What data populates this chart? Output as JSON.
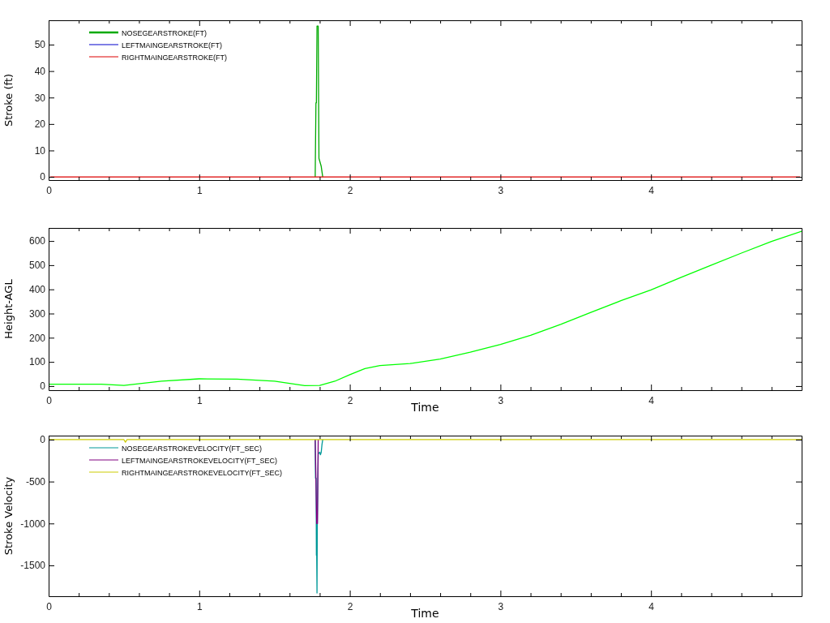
{
  "chart_data": [
    {
      "type": "line",
      "ylabel": "Stroke (ft)",
      "xlim": [
        0,
        5
      ],
      "ylim": [
        -1.2,
        59.2
      ],
      "xticks": [
        0,
        {
          "value": 0.2,
          "label": null
        },
        {
          "value": 0.4,
          "label": null
        },
        {
          "value": 0.6,
          "label": null
        },
        {
          "value": 0.8,
          "label": null
        },
        1,
        {
          "value": 1.2,
          "label": null
        },
        {
          "value": 1.4,
          "label": null
        },
        {
          "value": 1.6,
          "label": null
        },
        {
          "value": 1.8,
          "label": null
        },
        2,
        {
          "value": 2.2,
          "label": null
        },
        {
          "value": 2.4,
          "label": null
        },
        {
          "value": 2.6,
          "label": null
        },
        {
          "value": 2.8,
          "label": null
        },
        3,
        {
          "value": 3.2,
          "label": null
        },
        {
          "value": 3.4,
          "label": null
        },
        {
          "value": 3.6,
          "label": null
        },
        {
          "value": 3.8,
          "label": null
        },
        4,
        {
          "value": 4.2,
          "label": null
        },
        {
          "value": 4.4,
          "label": null
        },
        {
          "value": 4.6,
          "label": null
        },
        {
          "value": 4.8,
          "label": null
        }
      ],
      "yticks": [
        0,
        10,
        20,
        30,
        40,
        50
      ],
      "grid": false,
      "legend": "top left",
      "series": [
        {
          "name": "NOSEGEARSTROKE(FT)",
          "color": "#00aa00",
          "x": [
            1.77,
            1.775,
            1.778,
            1.782,
            1.79,
            1.795,
            1.8,
            1.805,
            1.81,
            1.815,
            1.82
          ],
          "values": [
            0,
            28,
            28,
            57,
            57,
            7,
            6,
            5,
            4,
            2,
            0
          ]
        },
        {
          "name": "LEFTMAINGEARSTROKE(FT)",
          "color": "#0000cc"
        },
        {
          "name": "RIGHTMAINGEARSTROKE(FT)",
          "color": "#dd0000",
          "x": [
            0.01,
            2.5,
            4.99
          ],
          "values": [
            0,
            0,
            0
          ]
        }
      ]
    },
    {
      "type": "line",
      "xlabel": "Time",
      "ylabel": "Height-AGL",
      "xlim": [
        0,
        5
      ],
      "ylim": [
        -17,
        654
      ],
      "xticks": [
        0,
        {
          "value": 0.2,
          "label": null
        },
        {
          "value": 0.4,
          "label": null
        },
        {
          "value": 0.6,
          "label": null
        },
        {
          "value": 0.8,
          "label": null
        },
        1,
        {
          "value": 1.2,
          "label": null
        },
        {
          "value": 1.4,
          "label": null
        },
        {
          "value": 1.6,
          "label": null
        },
        {
          "value": 1.8,
          "label": null
        },
        2,
        {
          "value": 2.2,
          "label": null
        },
        {
          "value": 2.4,
          "label": null
        },
        {
          "value": 2.6,
          "label": null
        },
        {
          "value": 2.8,
          "label": null
        },
        3,
        {
          "value": 3.2,
          "label": null
        },
        {
          "value": 3.4,
          "label": null
        },
        {
          "value": 3.6,
          "label": null
        },
        {
          "value": 3.8,
          "label": null
        },
        4,
        {
          "value": 4.2,
          "label": null
        },
        {
          "value": 4.4,
          "label": null
        },
        {
          "value": 4.6,
          "label": null
        },
        {
          "value": 4.8,
          "label": null
        }
      ],
      "yticks": [
        0,
        100,
        200,
        300,
        400,
        500,
        600
      ],
      "grid": false,
      "legend": false,
      "series": [
        {
          "color": "#00ff00",
          "x": [
            0,
            0.35,
            0.5,
            0.75,
            1,
            1.25,
            1.5,
            1.7,
            1.8,
            1.9,
            2,
            2.1,
            2.2,
            2.4,
            2.6,
            2.8,
            3,
            3.2,
            3.4,
            3.6,
            3.8,
            4,
            4.2,
            4.4,
            4.6,
            4.8,
            5
          ],
          "values": [
            8,
            8,
            3,
            20,
            30,
            29,
            20,
            2,
            3,
            20,
            47,
            72,
            85,
            93,
            112,
            140,
            172,
            210,
            255,
            305,
            353,
            398,
            450,
            500,
            550,
            598,
            640
          ]
        }
      ]
    },
    {
      "type": "line",
      "xlabel": "Time",
      "ylabel": "Stroke Velocity",
      "xlim": [
        0,
        5
      ],
      "ylim": [
        -1868,
        48
      ],
      "xticks": [
        0,
        {
          "value": 0.2,
          "label": null
        },
        {
          "value": 0.4,
          "label": null
        },
        {
          "value": 0.6,
          "label": null
        },
        {
          "value": 0.8,
          "label": null
        },
        1,
        {
          "value": 1.2,
          "label": null
        },
        {
          "value": 1.4,
          "label": null
        },
        {
          "value": 1.6,
          "label": null
        },
        {
          "value": 1.8,
          "label": null
        },
        2,
        {
          "value": 2.2,
          "label": null
        },
        {
          "value": 2.4,
          "label": null
        },
        {
          "value": 2.6,
          "label": null
        },
        {
          "value": 2.8,
          "label": null
        },
        3,
        {
          "value": 3.2,
          "label": null
        },
        {
          "value": 3.4,
          "label": null
        },
        {
          "value": 3.6,
          "label": null
        },
        {
          "value": 3.8,
          "label": null
        },
        4,
        {
          "value": 4.2,
          "label": null
        },
        {
          "value": 4.4,
          "label": null
        },
        {
          "value": 4.6,
          "label": null
        },
        {
          "value": 4.8,
          "label": null
        }
      ],
      "yticks": [
        0,
        -500,
        -1000,
        -1500
      ],
      "grid": false,
      "legend": "top left",
      "series": [
        {
          "name": "NOSEGEARSTROKEVELOCITY(FT_SEC)",
          "color": "#009999",
          "x": [
            1.77,
            1.772,
            1.776,
            1.778,
            1.78,
            1.782,
            1.784,
            1.79,
            1.795,
            1.8,
            1.805,
            1.81,
            1.815,
            1.82
          ],
          "values": [
            0,
            -460,
            -460,
            -1380,
            -1380,
            -1830,
            -1000,
            -170,
            -160,
            -150,
            -180,
            -150,
            -60,
            0
          ]
        },
        {
          "name": "LEFTMAINGEARSTROKEVELOCITY(FT_SEC)",
          "color": "#800080",
          "x": [
            1.77,
            1.78,
            1.785,
            1.79
          ],
          "values": [
            0,
            -1000,
            -1000,
            0
          ]
        },
        {
          "name": "RIGHTMAINGEARSTROKEVELOCITY(FT_SEC)",
          "color": "#cccc00",
          "x": [
            0,
            0.5,
            0.51,
            0.52,
            0.53,
            5
          ],
          "values": [
            0,
            0,
            -30,
            0,
            0,
            0
          ]
        }
      ]
    }
  ]
}
